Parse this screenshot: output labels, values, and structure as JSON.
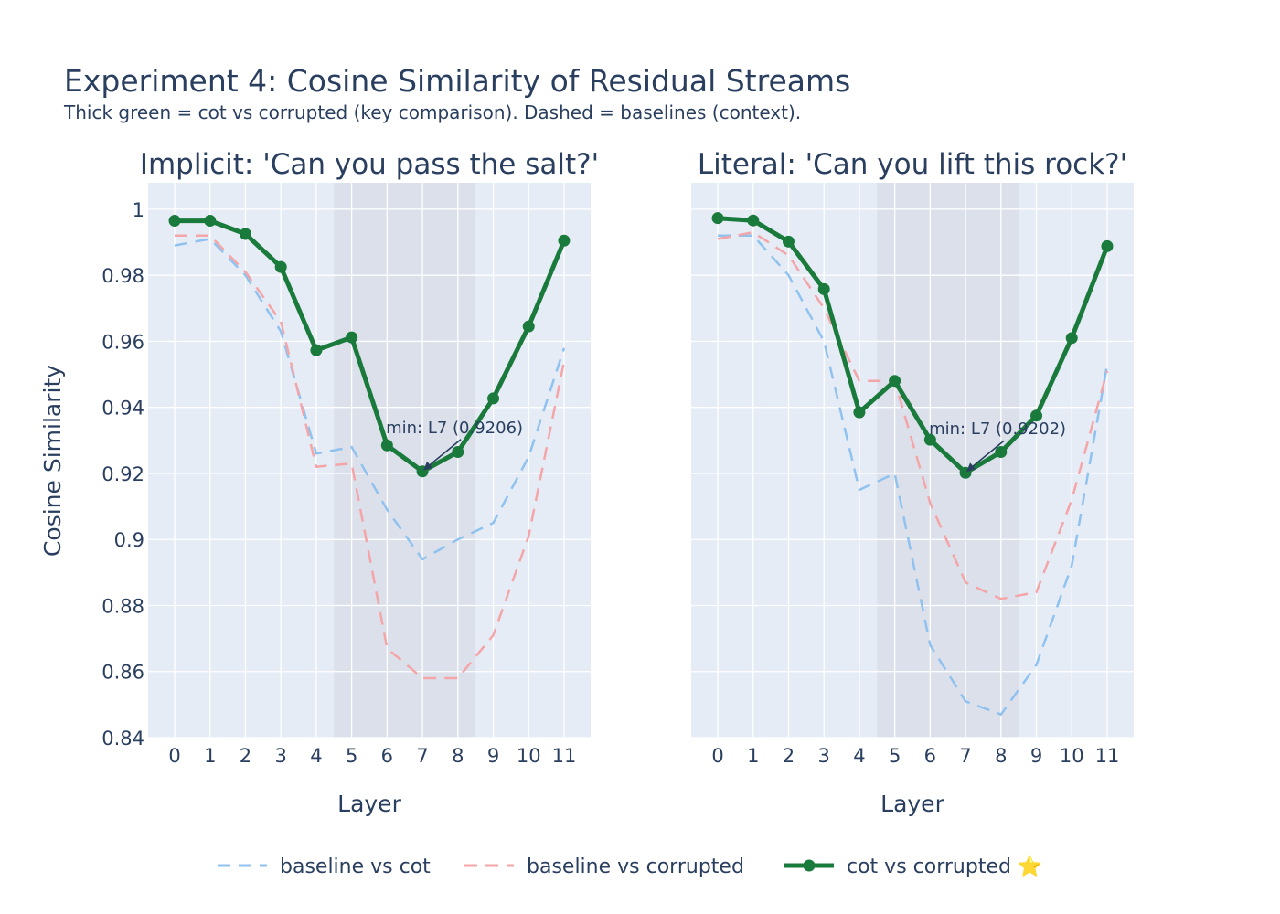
{
  "colors": {
    "plot_bg": "#e5ecf6",
    "grid": "#ffffff",
    "shade": "#c8ccd6",
    "baseline_vs_cot": "#90c2f0",
    "baseline_vs_corrupted": "#f4a5a8",
    "cot_vs_corrupted": "#1a7a3c",
    "text": "#2a3f5f"
  },
  "chart_data": {
    "type": "line",
    "title": "Experiment 4: Cosine Similarity of Residual Streams",
    "subtitle": "Thick green = cot vs corrupted (key comparison). Dashed = baselines (context).",
    "ylabel": "Cosine Similarity",
    "ylim": [
      0.84,
      1.008
    ],
    "yticks": [
      0.84,
      0.86,
      0.88,
      0.9,
      0.92,
      0.94,
      0.96,
      0.98,
      1
    ],
    "ytick_labels": [
      "0.84",
      "0.86",
      "0.88",
      "0.9",
      "0.92",
      "0.94",
      "0.96",
      "0.98",
      "1"
    ],
    "xlim": [
      -0.75,
      11.75
    ],
    "legend_position": "bottom-center",
    "legend": [
      {
        "name": "baseline vs cot",
        "style": "dashed",
        "color_key": "baseline_vs_cot"
      },
      {
        "name": "baseline vs corrupted",
        "style": "dashed",
        "color_key": "baseline_vs_corrupted"
      },
      {
        "name": "cot vs corrupted ⭐",
        "style": "solid-markers",
        "color_key": "cot_vs_corrupted"
      }
    ],
    "subplots": [
      {
        "title": "Implicit: 'Can you pass the salt?'",
        "xlabel": "Layer",
        "x": [
          0,
          1,
          2,
          3,
          4,
          5,
          6,
          7,
          8,
          9,
          10,
          11
        ],
        "shaded_layer_range": [
          4.5,
          8.5
        ],
        "series": [
          {
            "name": "baseline vs cot",
            "values": [
              0.989,
              0.991,
              0.98,
              0.963,
              0.926,
              0.928,
              0.909,
              0.894,
              0.9,
              0.905,
              0.925,
              0.958
            ]
          },
          {
            "name": "baseline vs corrupted",
            "values": [
              0.992,
              0.992,
              0.981,
              0.966,
              0.922,
              0.923,
              0.867,
              0.858,
              0.858,
              0.871,
              0.901,
              0.954
            ]
          },
          {
            "name": "cot vs corrupted ⭐",
            "values": [
              0.9965,
              0.9965,
              0.9925,
              0.9825,
              0.9573,
              0.9612,
              0.9285,
              0.9206,
              0.9265,
              0.9427,
              0.9645,
              0.9905
            ]
          }
        ],
        "annotation": {
          "text": "min: L7 (0.9206)",
          "x": 7,
          "y": 0.9206
        }
      },
      {
        "title": "Literal: 'Can you lift this rock?'",
        "xlabel": "Layer",
        "x": [
          0,
          1,
          2,
          3,
          4,
          5,
          6,
          7,
          8,
          9,
          10,
          11
        ],
        "shaded_layer_range": [
          4.5,
          8.5
        ],
        "series": [
          {
            "name": "baseline vs cot",
            "values": [
              0.992,
              0.992,
              0.98,
              0.96,
              0.915,
              0.92,
              0.868,
              0.851,
              0.847,
              0.862,
              0.892,
              0.953
            ]
          },
          {
            "name": "baseline vs corrupted",
            "values": [
              0.991,
              0.993,
              0.986,
              0.97,
              0.948,
              0.948,
              0.911,
              0.887,
              0.882,
              0.884,
              0.912,
              0.951
            ]
          },
          {
            "name": "cot vs corrupted ⭐",
            "values": [
              0.9973,
              0.9966,
              0.9902,
              0.9758,
              0.9385,
              0.948,
              0.9302,
              0.9202,
              0.9265,
              0.9375,
              0.961,
              0.9888
            ]
          }
        ],
        "annotation": {
          "text": "min: L7 (0.9202)",
          "x": 7,
          "y": 0.9202
        }
      }
    ]
  }
}
